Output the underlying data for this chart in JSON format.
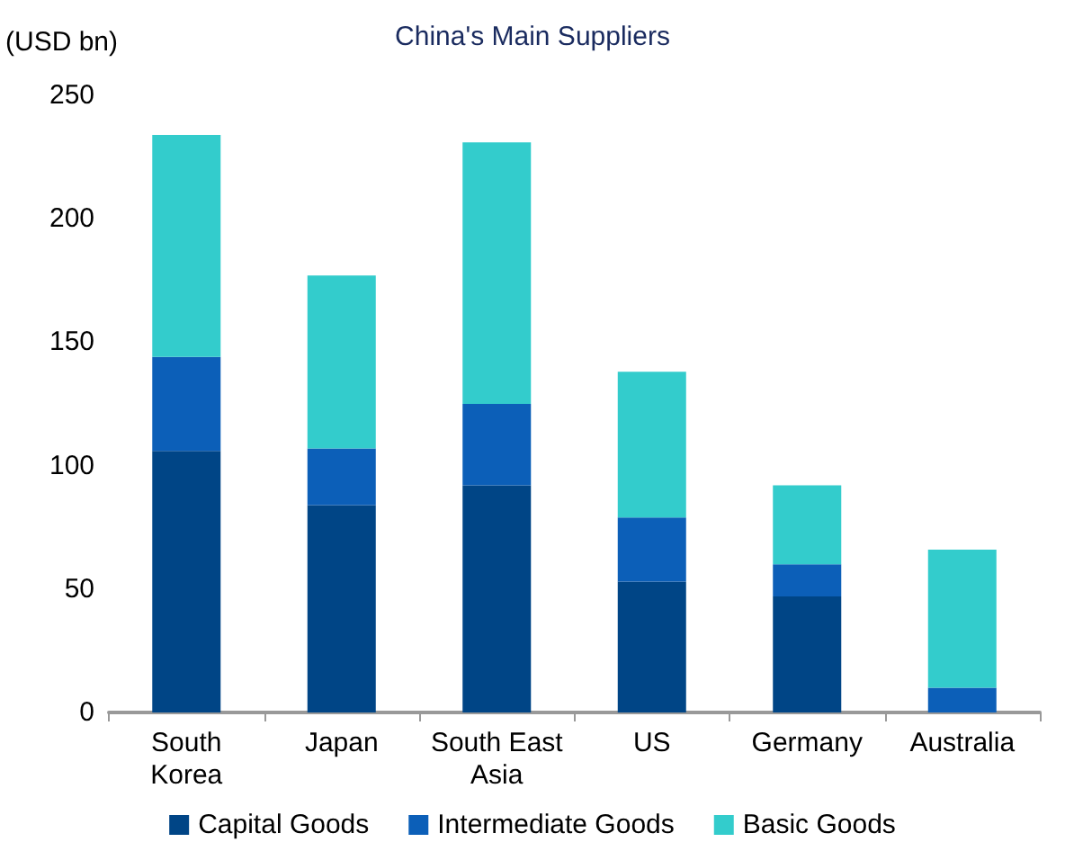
{
  "chart_data": {
    "type": "bar",
    "title": "China's Main Suppliers",
    "ylabel": "(USD bn)",
    "categories": [
      "South\nKorea",
      "Japan",
      "South East\nAsia",
      "US",
      "Germany",
      "Australia"
    ],
    "stacked": true,
    "series": [
      {
        "name": "Capital Goods",
        "color": "#004586",
        "values": [
          106,
          84,
          92,
          53,
          47,
          0
        ]
      },
      {
        "name": "Intermediate Goods",
        "color": "#0c5fb8",
        "values": [
          38,
          23,
          33,
          26,
          13,
          10
        ]
      },
      {
        "name": "Basic Goods",
        "color": "#33cccc",
        "values": [
          90,
          70,
          106,
          59,
          32,
          56
        ]
      }
    ],
    "ylim": [
      0,
      250
    ],
    "yticks": [
      0,
      50,
      100,
      150,
      200,
      250
    ],
    "grid": false,
    "legend": "bottom"
  }
}
